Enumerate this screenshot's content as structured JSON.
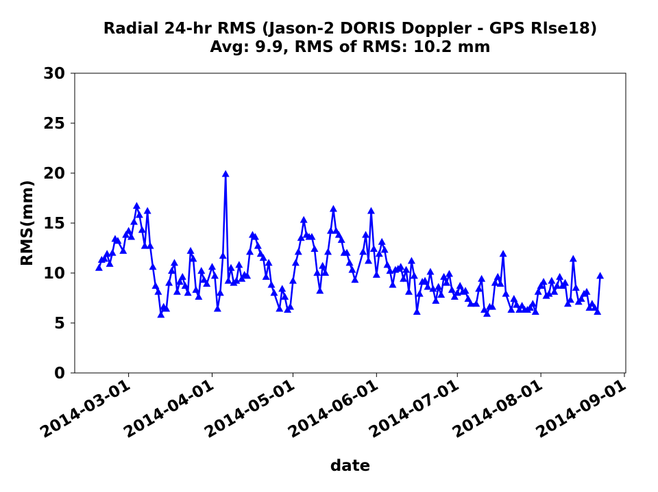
{
  "chart_data": {
    "type": "line",
    "title": "Radial 24-hr RMS (Jason-2 DORIS Doppler - GPS Rlse18)",
    "subtitle": "Avg: 9.9, RMS of RMS: 10.2 mm",
    "xlabel": "date",
    "ylabel": "RMS(mm)",
    "x": [
      "2014-02-18",
      "2014-02-19",
      "2014-02-20",
      "2014-02-21",
      "2014-02-22",
      "2014-02-23",
      "2014-02-24",
      "2014-02-25",
      "2014-02-27",
      "2014-02-28",
      "2014-03-01",
      "2014-03-02",
      "2014-03-03",
      "2014-03-04",
      "2014-03-05",
      "2014-03-06",
      "2014-03-07",
      "2014-03-08",
      "2014-03-09",
      "2014-03-10",
      "2014-03-11",
      "2014-03-12",
      "2014-03-13",
      "2014-03-14",
      "2014-03-15",
      "2014-03-16",
      "2014-03-17",
      "2014-03-18",
      "2014-03-19",
      "2014-03-20",
      "2014-03-21",
      "2014-03-22",
      "2014-03-23",
      "2014-03-24",
      "2014-03-25",
      "2014-03-26",
      "2014-03-27",
      "2014-03-28",
      "2014-03-29",
      "2014-03-30",
      "2014-04-01",
      "2014-04-02",
      "2014-04-03",
      "2014-04-04",
      "2014-04-05",
      "2014-04-06",
      "2014-04-07",
      "2014-04-08",
      "2014-04-09",
      "2014-04-10",
      "2014-04-11",
      "2014-04-12",
      "2014-04-13",
      "2014-04-14",
      "2014-04-15",
      "2014-04-16",
      "2014-04-17",
      "2014-04-18",
      "2014-04-19",
      "2014-04-20",
      "2014-04-21",
      "2014-04-22",
      "2014-04-23",
      "2014-04-24",
      "2014-04-26",
      "2014-04-27",
      "2014-04-28",
      "2014-04-29",
      "2014-04-30",
      "2014-05-01",
      "2014-05-02",
      "2014-05-03",
      "2014-05-04",
      "2014-05-05",
      "2014-05-06",
      "2014-05-07",
      "2014-05-08",
      "2014-05-09",
      "2014-05-10",
      "2014-05-11",
      "2014-05-12",
      "2014-05-13",
      "2014-05-14",
      "2014-05-15",
      "2014-05-16",
      "2014-05-17",
      "2014-05-18",
      "2014-05-19",
      "2014-05-20",
      "2014-05-21",
      "2014-05-22",
      "2014-05-23",
      "2014-05-24",
      "2014-05-27",
      "2014-05-28",
      "2014-05-29",
      "2014-05-30",
      "2014-05-31",
      "2014-06-01",
      "2014-06-02",
      "2014-06-03",
      "2014-06-04",
      "2014-06-05",
      "2014-06-06",
      "2014-06-07",
      "2014-06-08",
      "2014-06-09",
      "2014-06-10",
      "2014-06-11",
      "2014-06-12",
      "2014-06-13",
      "2014-06-14",
      "2014-06-15",
      "2014-06-16",
      "2014-06-17",
      "2014-06-18",
      "2014-06-19",
      "2014-06-20",
      "2014-06-21",
      "2014-06-22",
      "2014-06-23",
      "2014-06-24",
      "2014-06-25",
      "2014-06-26",
      "2014-06-27",
      "2014-06-28",
      "2014-06-29",
      "2014-06-30",
      "2014-07-01",
      "2014-07-02",
      "2014-07-03",
      "2014-07-04",
      "2014-07-05",
      "2014-07-06",
      "2014-07-08",
      "2014-07-09",
      "2014-07-10",
      "2014-07-11",
      "2014-07-12",
      "2014-07-13",
      "2014-07-14",
      "2014-07-15",
      "2014-07-16",
      "2014-07-17",
      "2014-07-18",
      "2014-07-19",
      "2014-07-21",
      "2014-07-22",
      "2014-07-23",
      "2014-07-24",
      "2014-07-25",
      "2014-07-26",
      "2014-07-27",
      "2014-07-28",
      "2014-07-29",
      "2014-07-30",
      "2014-07-31",
      "2014-08-01",
      "2014-08-02",
      "2014-08-03",
      "2014-08-04",
      "2014-08-05",
      "2014-08-06",
      "2014-08-07",
      "2014-08-08",
      "2014-08-09",
      "2014-08-10",
      "2014-08-11",
      "2014-08-12",
      "2014-08-13",
      "2014-08-14",
      "2014-08-15",
      "2014-08-16",
      "2014-08-17",
      "2014-08-18",
      "2014-08-19",
      "2014-08-20",
      "2014-08-21",
      "2014-08-22",
      "2014-08-23"
    ],
    "series": [
      {
        "name": "RMS",
        "color": "#0000ff",
        "values": [
          10.5,
          11.3,
          11.4,
          11.9,
          10.9,
          12.0,
          13.4,
          13.2,
          12.2,
          13.8,
          14.2,
          13.6,
          15.1,
          16.7,
          15.8,
          14.3,
          12.7,
          16.2,
          12.7,
          10.6,
          8.7,
          8.1,
          5.8,
          6.6,
          6.4,
          9.0,
          10.2,
          11.0,
          8.1,
          9.1,
          9.6,
          8.7,
          8.0,
          12.2,
          11.4,
          8.3,
          7.6,
          10.2,
          9.3,
          8.9,
          10.6,
          9.7,
          6.4,
          8.0,
          11.7,
          19.9,
          9.2,
          10.5,
          9.0,
          9.2,
          10.8,
          9.4,
          9.8,
          9.7,
          12.1,
          13.8,
          13.6,
          12.7,
          11.9,
          11.5,
          9.6,
          11.0,
          8.8,
          8.0,
          6.4,
          8.4,
          7.6,
          6.3,
          6.6,
          9.2,
          11.0,
          12.1,
          13.5,
          15.3,
          13.8,
          13.6,
          13.6,
          12.4,
          10.0,
          8.2,
          10.7,
          10.0,
          12.1,
          14.2,
          16.4,
          14.2,
          13.8,
          13.3,
          12.0,
          12.0,
          11.0,
          10.3,
          9.3,
          12.1,
          13.8,
          11.2,
          16.2,
          12.4,
          9.8,
          11.9,
          13.1,
          12.3,
          10.8,
          10.2,
          8.8,
          10.3,
          10.4,
          10.6,
          9.4,
          10.3,
          8.1,
          11.2,
          9.7,
          6.1,
          7.9,
          9.1,
          9.2,
          8.6,
          10.1,
          8.4,
          7.2,
          8.6,
          7.8,
          9.6,
          9.0,
          9.9,
          8.3,
          7.6,
          8.0,
          8.7,
          8.1,
          8.2,
          7.4,
          6.9,
          6.9,
          8.4,
          9.4,
          6.3,
          5.9,
          6.6,
          6.6,
          9.0,
          9.6,
          8.9,
          11.9,
          7.9,
          6.3,
          7.4,
          6.8,
          6.3,
          6.7,
          6.3,
          6.3,
          6.5,
          6.9,
          6.1,
          8.1,
          8.7,
          9.1,
          7.7,
          7.9,
          9.2,
          8.1,
          8.7,
          9.6,
          8.7,
          9.0,
          6.9,
          7.3,
          11.4,
          8.5,
          7.1,
          7.4,
          7.9,
          8.1,
          6.5,
          6.9,
          6.5,
          6.1,
          9.7
        ]
      }
    ],
    "xlim": [
      "2014-02-09",
      "2014-09-01"
    ],
    "xticks": [
      "2014-03-01",
      "2014-04-01",
      "2014-05-01",
      "2014-06-01",
      "2014-07-01",
      "2014-08-01",
      "2014-09-01"
    ],
    "ylim": [
      0,
      30
    ],
    "yticks": [
      0,
      5,
      10,
      15,
      20,
      25,
      30
    ],
    "grid": false
  }
}
